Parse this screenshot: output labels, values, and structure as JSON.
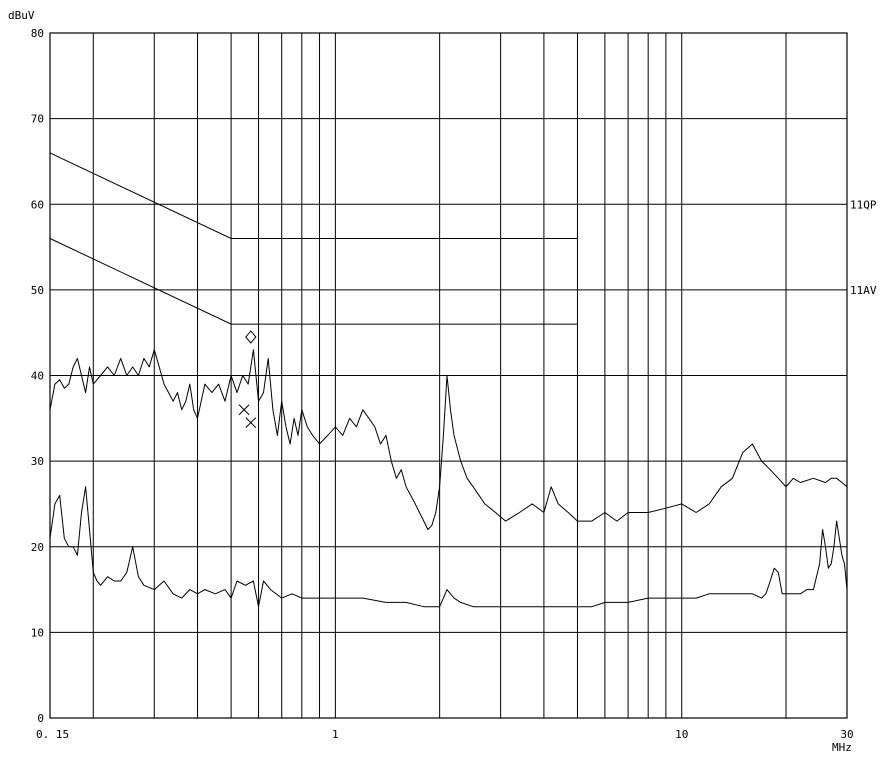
{
  "chart_data": {
    "type": "line",
    "title": "",
    "ylabel": "dBuV",
    "xlabel": "MHz",
    "x_scale": "log",
    "xlim": [
      0.15,
      30
    ],
    "ylim": [
      0,
      80
    ],
    "grid": true,
    "y_ticks": [
      {
        "value": 0,
        "label": "0"
      },
      {
        "value": 10,
        "label": "10"
      },
      {
        "value": 20,
        "label": "20"
      },
      {
        "value": 30,
        "label": "30"
      },
      {
        "value": 40,
        "label": "40"
      },
      {
        "value": 50,
        "label": "50"
      },
      {
        "value": 60,
        "label": "60"
      },
      {
        "value": 70,
        "label": "70"
      },
      {
        "value": 80,
        "label": "80"
      }
    ],
    "x_ticks": [
      {
        "value": 0.15,
        "label": "0. 15"
      },
      {
        "value": 1,
        "label": "1"
      },
      {
        "value": 10,
        "label": "10"
      },
      {
        "value": 30,
        "label": "30"
      }
    ],
    "x_gridlines": [
      0.2,
      0.3,
      0.4,
      0.5,
      0.6,
      0.7,
      0.8,
      0.9,
      1,
      2,
      3,
      4,
      5,
      6,
      7,
      8,
      9,
      10,
      20
    ],
    "limit_lines": [
      {
        "name": "11QP",
        "points": [
          [
            0.15,
            66
          ],
          [
            0.5,
            56
          ],
          [
            5,
            56
          ]
        ],
        "label_value": 60
      },
      {
        "name": "11AV",
        "points": [
          [
            0.15,
            56
          ],
          [
            0.5,
            46
          ],
          [
            5,
            46
          ]
        ],
        "label_value": 50
      }
    ],
    "series": [
      {
        "points": [
          [
            0.15,
            36
          ],
          [
            0.155,
            39
          ],
          [
            0.16,
            39.5
          ],
          [
            0.165,
            38.5
          ],
          [
            0.17,
            39
          ],
          [
            0.175,
            41
          ],
          [
            0.18,
            42
          ],
          [
            0.185,
            40
          ],
          [
            0.19,
            38
          ],
          [
            0.195,
            41
          ],
          [
            0.2,
            39
          ],
          [
            0.21,
            40
          ],
          [
            0.22,
            41
          ],
          [
            0.23,
            40
          ],
          [
            0.24,
            42
          ],
          [
            0.25,
            40
          ],
          [
            0.26,
            41
          ],
          [
            0.27,
            40
          ],
          [
            0.28,
            42
          ],
          [
            0.29,
            41
          ],
          [
            0.3,
            43
          ],
          [
            0.31,
            41
          ],
          [
            0.32,
            39
          ],
          [
            0.33,
            38
          ],
          [
            0.34,
            37
          ],
          [
            0.35,
            38
          ],
          [
            0.36,
            36
          ],
          [
            0.37,
            37
          ],
          [
            0.38,
            39
          ],
          [
            0.39,
            36
          ],
          [
            0.4,
            35
          ],
          [
            0.42,
            39
          ],
          [
            0.44,
            38
          ],
          [
            0.46,
            39
          ],
          [
            0.48,
            37
          ],
          [
            0.5,
            40
          ],
          [
            0.52,
            38
          ],
          [
            0.54,
            40
          ],
          [
            0.56,
            39
          ],
          [
            0.58,
            43
          ],
          [
            0.6,
            37
          ],
          [
            0.62,
            38
          ],
          [
            0.64,
            42
          ],
          [
            0.66,
            36
          ],
          [
            0.68,
            33
          ],
          [
            0.7,
            37
          ],
          [
            0.72,
            34
          ],
          [
            0.74,
            32
          ],
          [
            0.76,
            35
          ],
          [
            0.78,
            33
          ],
          [
            0.8,
            36
          ],
          [
            0.83,
            34
          ],
          [
            0.86,
            33
          ],
          [
            0.9,
            32
          ],
          [
            0.95,
            33
          ],
          [
            1,
            34
          ],
          [
            1.05,
            33
          ],
          [
            1.1,
            35
          ],
          [
            1.15,
            34
          ],
          [
            1.2,
            36
          ],
          [
            1.25,
            35
          ],
          [
            1.3,
            34
          ],
          [
            1.35,
            32
          ],
          [
            1.4,
            33
          ],
          [
            1.45,
            30
          ],
          [
            1.5,
            28
          ],
          [
            1.55,
            29
          ],
          [
            1.6,
            27
          ],
          [
            1.7,
            25
          ],
          [
            1.8,
            23
          ],
          [
            1.85,
            22
          ],
          [
            1.9,
            22.5
          ],
          [
            1.95,
            24
          ],
          [
            2,
            27
          ],
          [
            2.05,
            33
          ],
          [
            2.1,
            40
          ],
          [
            2.15,
            36
          ],
          [
            2.2,
            33
          ],
          [
            2.3,
            30
          ],
          [
            2.4,
            28
          ],
          [
            2.5,
            27
          ],
          [
            2.7,
            25
          ],
          [
            2.9,
            24
          ],
          [
            3.1,
            23
          ],
          [
            3.4,
            24
          ],
          [
            3.7,
            25
          ],
          [
            4.0,
            24
          ],
          [
            4.2,
            27
          ],
          [
            4.4,
            25
          ],
          [
            4.7,
            24
          ],
          [
            5,
            23
          ],
          [
            5.5,
            23
          ],
          [
            6,
            24
          ],
          [
            6.5,
            23
          ],
          [
            7,
            24
          ],
          [
            8,
            24
          ],
          [
            9,
            24.5
          ],
          [
            10,
            25
          ],
          [
            11,
            24
          ],
          [
            12,
            25
          ],
          [
            13,
            27
          ],
          [
            14,
            28
          ],
          [
            15,
            31
          ],
          [
            16,
            32
          ],
          [
            17,
            30
          ],
          [
            18,
            29
          ],
          [
            19,
            28
          ],
          [
            20,
            27
          ],
          [
            21,
            28
          ],
          [
            22,
            27.5
          ],
          [
            24,
            28
          ],
          [
            26,
            27.5
          ],
          [
            27,
            28
          ],
          [
            28,
            28
          ],
          [
            29,
            27.5
          ],
          [
            30,
            27
          ]
        ]
      },
      {
        "points": [
          [
            0.15,
            21
          ],
          [
            0.155,
            25
          ],
          [
            0.16,
            26
          ],
          [
            0.165,
            21
          ],
          [
            0.17,
            20
          ],
          [
            0.175,
            20
          ],
          [
            0.18,
            19
          ],
          [
            0.185,
            24
          ],
          [
            0.19,
            27
          ],
          [
            0.195,
            22
          ],
          [
            0.2,
            17
          ],
          [
            0.205,
            16
          ],
          [
            0.21,
            15.5
          ],
          [
            0.22,
            16.5
          ],
          [
            0.23,
            16
          ],
          [
            0.24,
            16
          ],
          [
            0.25,
            17
          ],
          [
            0.26,
            20
          ],
          [
            0.27,
            16.5
          ],
          [
            0.28,
            15.5
          ],
          [
            0.3,
            15
          ],
          [
            0.32,
            16
          ],
          [
            0.34,
            14.5
          ],
          [
            0.36,
            14
          ],
          [
            0.38,
            15
          ],
          [
            0.4,
            14.5
          ],
          [
            0.42,
            15
          ],
          [
            0.45,
            14.5
          ],
          [
            0.48,
            15
          ],
          [
            0.5,
            14
          ],
          [
            0.52,
            16
          ],
          [
            0.55,
            15.5
          ],
          [
            0.58,
            16
          ],
          [
            0.6,
            13
          ],
          [
            0.62,
            16
          ],
          [
            0.65,
            15
          ],
          [
            0.7,
            14
          ],
          [
            0.75,
            14.5
          ],
          [
            0.8,
            14
          ],
          [
            0.9,
            14
          ],
          [
            1,
            14
          ],
          [
            1.1,
            14
          ],
          [
            1.2,
            14
          ],
          [
            1.4,
            13.5
          ],
          [
            1.6,
            13.5
          ],
          [
            1.8,
            13
          ],
          [
            2,
            13
          ],
          [
            2.05,
            14
          ],
          [
            2.1,
            15
          ],
          [
            2.2,
            14
          ],
          [
            2.3,
            13.5
          ],
          [
            2.5,
            13
          ],
          [
            3,
            13
          ],
          [
            3.5,
            13
          ],
          [
            4,
            13
          ],
          [
            4.5,
            13
          ],
          [
            5,
            13
          ],
          [
            5.5,
            13
          ],
          [
            6,
            13.5
          ],
          [
            7,
            13.5
          ],
          [
            8,
            14
          ],
          [
            9,
            14
          ],
          [
            10,
            14
          ],
          [
            11,
            14
          ],
          [
            12,
            14.5
          ],
          [
            13,
            14.5
          ],
          [
            14,
            14.5
          ],
          [
            15,
            14.5
          ],
          [
            16,
            14.5
          ],
          [
            17,
            14
          ],
          [
            17.5,
            14.5
          ],
          [
            18,
            16
          ],
          [
            18.5,
            17.5
          ],
          [
            19,
            17
          ],
          [
            19.5,
            14.5
          ],
          [
            20,
            14.5
          ],
          [
            21,
            14.5
          ],
          [
            22,
            14.5
          ],
          [
            23,
            15
          ],
          [
            24,
            15
          ],
          [
            25,
            18
          ],
          [
            25.5,
            22
          ],
          [
            26,
            20
          ],
          [
            26.5,
            17.5
          ],
          [
            27,
            18
          ],
          [
            27.5,
            20
          ],
          [
            28,
            23
          ],
          [
            28.5,
            21
          ],
          [
            29,
            19
          ],
          [
            29.5,
            18
          ],
          [
            30,
            15
          ]
        ]
      }
    ],
    "markers": [
      {
        "symbol": "diamond",
        "x": 0.57,
        "y": 44.5
      },
      {
        "symbol": "cross",
        "x": 0.545,
        "y": 36
      },
      {
        "symbol": "cross",
        "x": 0.57,
        "y": 34.5
      }
    ]
  }
}
